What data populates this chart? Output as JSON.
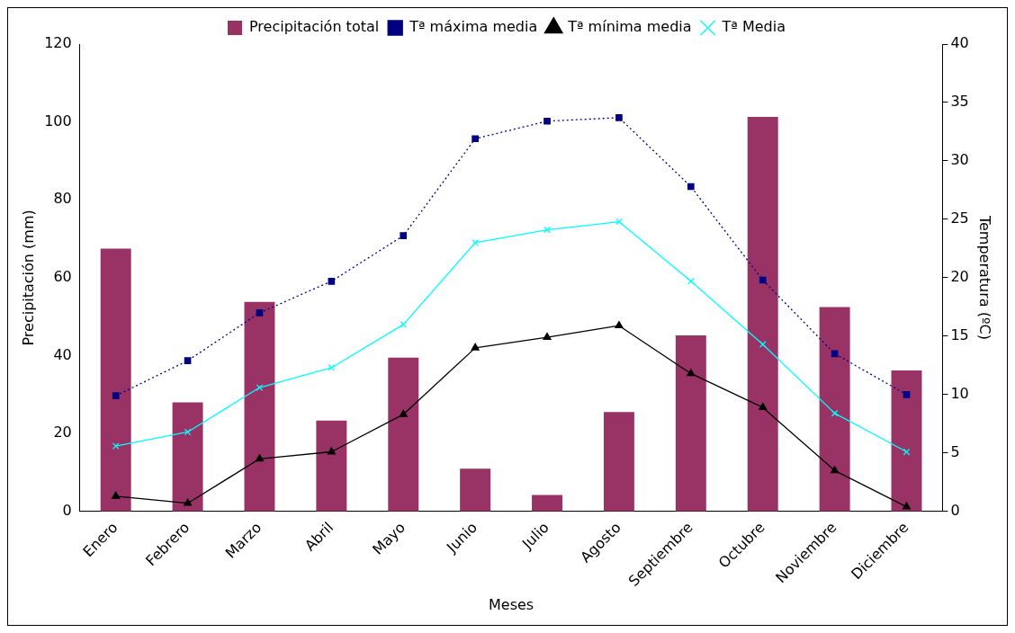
{
  "chart_data": {
    "type": "bar",
    "xlabel": "Meses",
    "ylabel": "Precipitación (mm)",
    "y2label": "Temperatura (ºC)",
    "categories": [
      "Enero",
      "Febrero",
      "Marzo",
      "Abril",
      "Mayo",
      "Junio",
      "Julio",
      "Agosto",
      "Septiembre",
      "Octubre",
      "Noviembre",
      "Diciembre"
    ],
    "series": [
      {
        "name": "Precipitación total",
        "color": "#993366",
        "values": [
          67.5,
          28,
          53.8,
          23.3,
          39.5,
          11,
          4.2,
          25.5,
          45.2,
          101.3,
          52.5,
          36.2
        ]
      },
      {
        "name": "Tª máxima media",
        "type": "line",
        "axis": "y2",
        "color": "#000080",
        "marker": "square",
        "line_style": "dotted",
        "values": [
          9.9,
          12.9,
          17.0,
          19.7,
          23.6,
          31.9,
          33.4,
          33.7,
          27.8,
          19.8,
          13.5,
          10.0
        ]
      },
      {
        "name": "Tª mínima media",
        "type": "line",
        "axis": "y2",
        "color": "#000000",
        "marker": "triangle",
        "line_style": "solid",
        "values": [
          1.3,
          0.7,
          4.5,
          5.1,
          8.3,
          14.0,
          14.9,
          15.9,
          11.8,
          8.9,
          3.5,
          0.4
        ]
      },
      {
        "name": "Tª Media",
        "type": "line",
        "axis": "y2",
        "color": "#00ffff",
        "marker": "cross",
        "line_style": "solid",
        "values": [
          5.6,
          6.8,
          10.6,
          12.3,
          16.0,
          23.0,
          24.1,
          24.8,
          19.7,
          14.3,
          8.4,
          5.1
        ]
      }
    ],
    "ylim": [
      0,
      120
    ],
    "yticks": [
      0,
      20,
      40,
      60,
      80,
      100,
      120
    ],
    "y2lim": [
      0,
      40
    ],
    "y2ticks": [
      0,
      5,
      10,
      15,
      20,
      25,
      30,
      35,
      40
    ],
    "grid": false,
    "legend": "top"
  }
}
